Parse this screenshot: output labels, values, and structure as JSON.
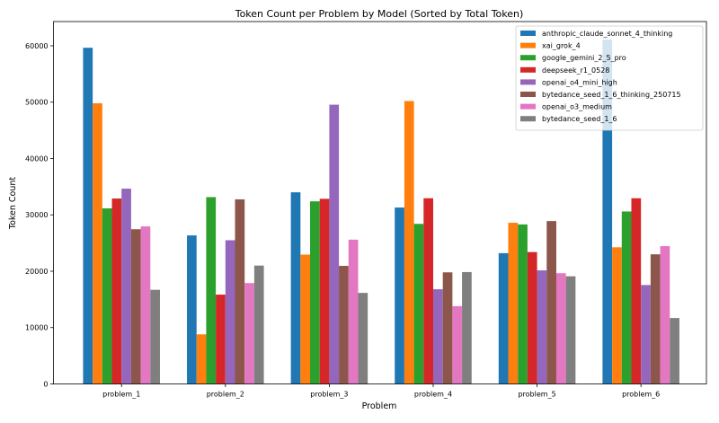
{
  "chart_data": {
    "type": "bar",
    "title": "Token Count per Problem by Model (Sorted by Total Token)",
    "xlabel": "Problem",
    "ylabel": "Token Count",
    "ylim": [
      0,
      64300
    ],
    "yticks": [
      0,
      10000,
      20000,
      30000,
      40000,
      50000,
      60000
    ],
    "grid": false,
    "legend_position": "top-right",
    "categories": [
      "problem_1",
      "problem_2",
      "problem_3",
      "problem_4",
      "problem_5",
      "problem_6"
    ],
    "series": [
      {
        "name": "anthropic_claude_sonnet_4_thinking",
        "color": "#1f77b4",
        "values": [
          59650,
          26350,
          34000,
          31300,
          23200,
          61100
        ]
      },
      {
        "name": "xai_grok_4",
        "color": "#ff7f0e",
        "values": [
          49800,
          8800,
          22950,
          50200,
          28600,
          24250
        ]
      },
      {
        "name": "google_gemini_2_5_pro",
        "color": "#2ca02c",
        "values": [
          31150,
          33150,
          32400,
          28400,
          28300,
          30600
        ]
      },
      {
        "name": "deepseek_r1_0528",
        "color": "#d62728",
        "values": [
          32900,
          15850,
          32850,
          32950,
          23400,
          32950
        ]
      },
      {
        "name": "openai_o4_mini_high",
        "color": "#9467bd",
        "values": [
          34650,
          25500,
          49550,
          16800,
          20150,
          17550
        ]
      },
      {
        "name": "bytedance_seed_1_6_thinking_250715",
        "color": "#8c564b",
        "values": [
          27450,
          32750,
          20950,
          19800,
          28900,
          23000
        ]
      },
      {
        "name": "openai_o3_medium",
        "color": "#e377c2",
        "values": [
          27950,
          17900,
          25600,
          13800,
          19650,
          24450
        ]
      },
      {
        "name": "bytedance_seed_1_6",
        "color": "#7f7f7f",
        "values": [
          16700,
          21000,
          16150,
          19850,
          19100,
          11700
        ]
      }
    ]
  }
}
